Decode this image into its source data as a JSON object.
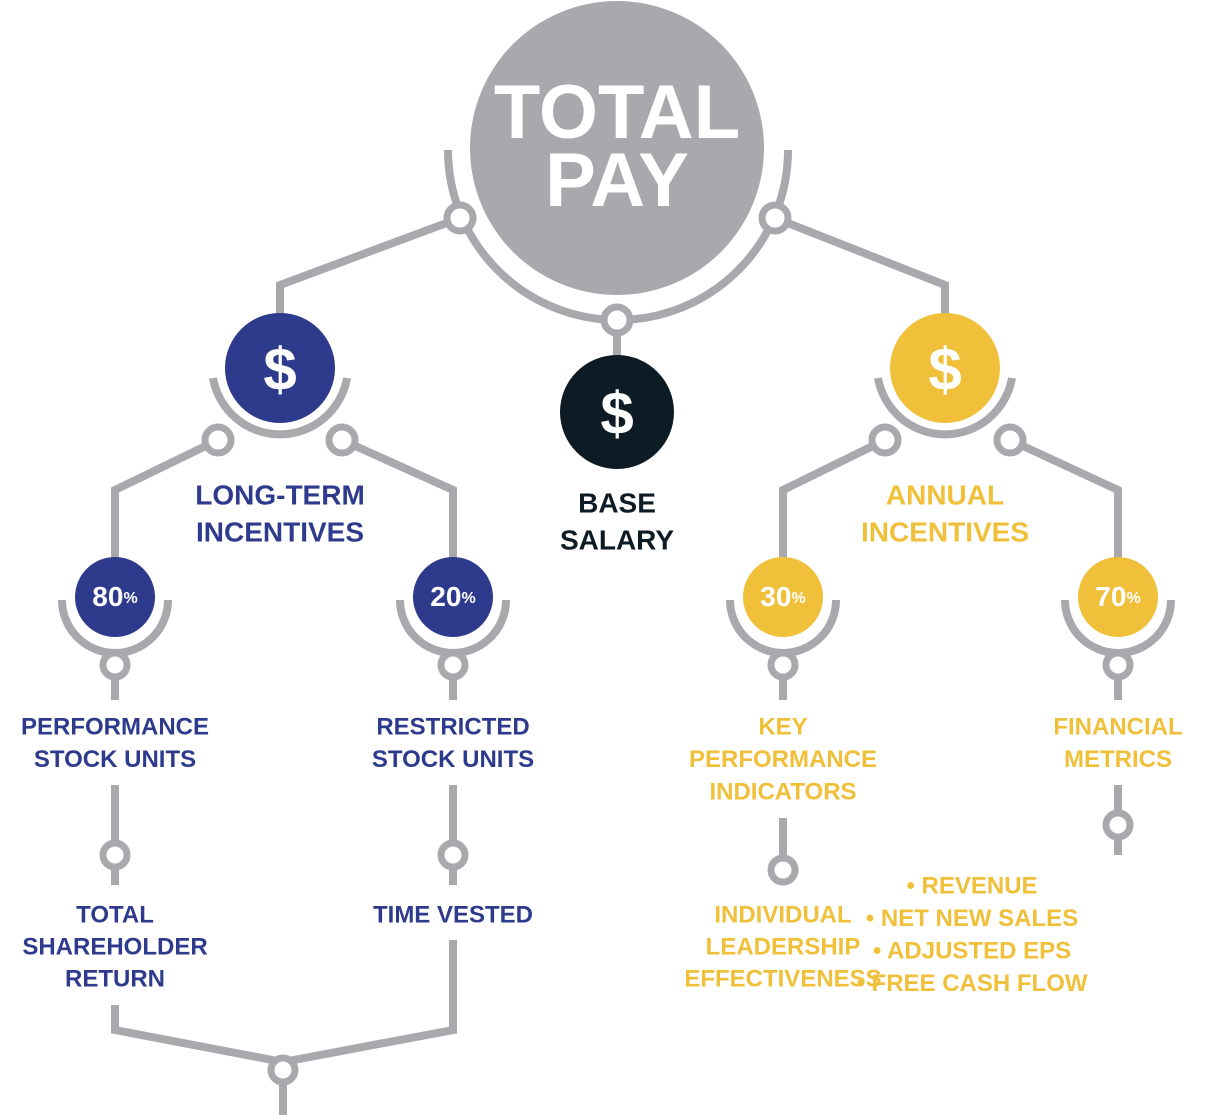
{
  "center": {
    "title_lines": [
      "TOTAL",
      "PAY"
    ]
  },
  "branches": [
    {
      "symbol": "$",
      "label_lines": [
        "LONG-TERM",
        "INCENTIVES"
      ],
      "children": [
        {
          "percent": {
            "number": "80",
            "unit": "%"
          },
          "label_lines": [
            "PERFORMANCE",
            "STOCK UNITS"
          ],
          "detail_lines": [
            "TOTAL",
            "SHAREHOLDER",
            "RETURN"
          ]
        },
        {
          "percent": {
            "number": "20",
            "unit": "%"
          },
          "label_lines": [
            "RESTRICTED",
            "STOCK UNITS"
          ],
          "detail_lines": [
            "TIME VESTED"
          ]
        }
      ]
    },
    {
      "symbol": "$",
      "label_lines": [
        "BASE",
        "SALARY"
      ]
    },
    {
      "symbol": "$",
      "label_lines": [
        "ANNUAL",
        "INCENTIVES"
      ],
      "children": [
        {
          "percent": {
            "number": "30",
            "unit": "%"
          },
          "label_lines": [
            "KEY",
            "PERFORMANCE",
            "INDICATORS"
          ],
          "detail_lines": [
            "INDIVIDUAL",
            "LEADERSHIP",
            "EFFECTIVENESS"
          ]
        },
        {
          "percent": {
            "number": "70",
            "unit": "%"
          },
          "label_lines": [
            "FINANCIAL",
            "METRICS"
          ],
          "detail_lines": [
            "• REVENUE",
            "• NET NEW SALES",
            "• ADJUSTED EPS",
            "• FREE CASH FLOW"
          ]
        }
      ]
    }
  ]
}
